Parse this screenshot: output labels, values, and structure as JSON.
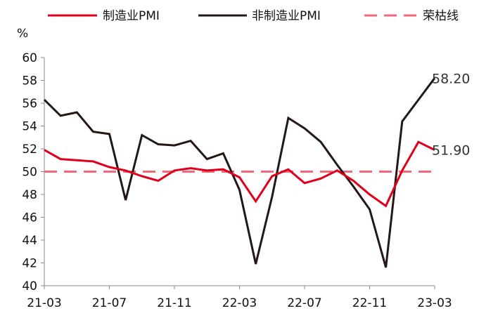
{
  "chart_data": {
    "type": "line",
    "unit": "%",
    "ylim": [
      40,
      60
    ],
    "yticks": [
      40,
      42,
      44,
      46,
      48,
      50,
      52,
      54,
      56,
      58,
      60
    ],
    "x": [
      "21-03",
      "21-04",
      "21-05",
      "21-06",
      "21-07",
      "21-08",
      "21-09",
      "21-10",
      "21-11",
      "21-12",
      "22-01",
      "22-02",
      "22-03",
      "22-04",
      "22-05",
      "22-06",
      "22-07",
      "22-08",
      "22-09",
      "22-10",
      "22-11",
      "22-12",
      "23-01",
      "23-02",
      "23-03"
    ],
    "xticks": [
      "21-03",
      "21-07",
      "21-11",
      "22-03",
      "22-07",
      "22-11",
      "23-03"
    ],
    "legend_position": "top",
    "grid": false,
    "series": [
      {
        "name": "制造业PMI",
        "color": "#e0001b",
        "style": "solid",
        "values": [
          51.9,
          51.1,
          51.0,
          50.9,
          50.4,
          50.1,
          49.6,
          49.2,
          50.1,
          50.3,
          50.1,
          50.2,
          49.5,
          47.4,
          49.6,
          50.2,
          49.0,
          49.4,
          50.1,
          49.2,
          48.0,
          47.0,
          50.1,
          52.6,
          51.9
        ]
      },
      {
        "name": "非制造业PMI",
        "color": "#231815",
        "style": "solid",
        "values": [
          56.3,
          54.9,
          55.2,
          53.5,
          53.3,
          47.5,
          53.2,
          52.4,
          52.3,
          52.7,
          51.1,
          51.6,
          48.4,
          41.9,
          47.8,
          54.7,
          53.8,
          52.6,
          50.6,
          48.7,
          46.7,
          41.6,
          54.4,
          56.3,
          58.2
        ]
      },
      {
        "name": "荣枯线",
        "color": "#f26a7a",
        "style": "dashed",
        "values": [
          50,
          50,
          50,
          50,
          50,
          50,
          50,
          50,
          50,
          50,
          50,
          50,
          50,
          50,
          50,
          50,
          50,
          50,
          50,
          50,
          50,
          50,
          50,
          50,
          50
        ]
      }
    ],
    "end_labels": [
      {
        "series": "非制造业PMI",
        "text": "58.20"
      },
      {
        "series": "制造业PMI",
        "text": "51.90"
      }
    ]
  }
}
